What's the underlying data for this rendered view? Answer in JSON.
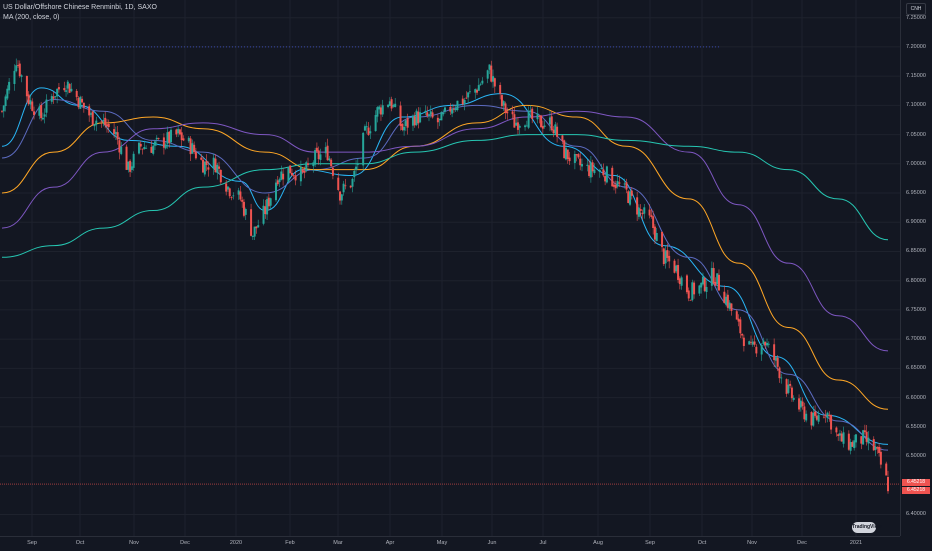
{
  "header": {
    "symbol_line": "US Dollar/Offshore Chinese Renminbi, 1D, SAXO",
    "indicator_line": "MA (200, close, 0)",
    "currency": "CNH"
  },
  "price_axis": {
    "labels": [
      "7.25000",
      "7.20000",
      "7.15000",
      "7.10000",
      "7.05000",
      "7.00000",
      "6.95000",
      "6.90000",
      "6.85000",
      "6.80000",
      "6.75000",
      "6.70000",
      "6.65000",
      "6.60000",
      "6.55000",
      "6.50000",
      "6.40000"
    ],
    "current_price_tag": "6.45218",
    "second_tag": "6.45218"
  },
  "time_axis": {
    "labels": [
      "Sep",
      "Oct",
      "Nov",
      "Dec",
      "2020",
      "Feb",
      "Mar",
      "Apr",
      "May",
      "Jun",
      "Jul",
      "Aug",
      "Sep",
      "Oct",
      "Nov",
      "Dec",
      "2021"
    ]
  },
  "watermark": "TradingView",
  "colors": {
    "background": "#131722",
    "up": "#26a69a",
    "down": "#ef5350",
    "ma_fast": "#29b6f6",
    "ma_mid": "#5c6bc0",
    "ma_orange": "#ffa726",
    "ma_purple": "#7e57c2",
    "ma_200": "#26c6b2",
    "price_line": "#ef5350"
  },
  "chart_data": {
    "type": "candlestick",
    "title": "US Dollar/Offshore Chinese Renminbi, 1D, SAXO",
    "ylim": [
      6.37,
      7.27
    ],
    "x_range": [
      "2019-08-26",
      "2021-01-05"
    ],
    "close_path": [
      {
        "date": "2019-08-26",
        "value": 7.09
      },
      {
        "date": "2019-09-03",
        "value": 7.18
      },
      {
        "date": "2019-09-10",
        "value": 7.11
      },
      {
        "date": "2019-09-17",
        "value": 7.08
      },
      {
        "date": "2019-09-24",
        "value": 7.12
      },
      {
        "date": "2019-10-01",
        "value": 7.14
      },
      {
        "date": "2019-10-08",
        "value": 7.11
      },
      {
        "date": "2019-10-15",
        "value": 7.08
      },
      {
        "date": "2019-10-22",
        "value": 7.07
      },
      {
        "date": "2019-10-29",
        "value": 7.05
      },
      {
        "date": "2019-11-05",
        "value": 6.99
      },
      {
        "date": "2019-11-12",
        "value": 7.03
      },
      {
        "date": "2019-11-19",
        "value": 7.03
      },
      {
        "date": "2019-11-26",
        "value": 7.04
      },
      {
        "date": "2019-12-03",
        "value": 7.05
      },
      {
        "date": "2019-12-10",
        "value": 7.03
      },
      {
        "date": "2019-12-17",
        "value": 7.0
      },
      {
        "date": "2019-12-24",
        "value": 7.0
      },
      {
        "date": "2019-12-31",
        "value": 6.96
      },
      {
        "date": "2020-01-07",
        "value": 6.94
      },
      {
        "date": "2020-01-14",
        "value": 6.88
      },
      {
        "date": "2020-01-21",
        "value": 6.92
      },
      {
        "date": "2020-01-28",
        "value": 6.98
      },
      {
        "date": "2020-02-04",
        "value": 6.99
      },
      {
        "date": "2020-02-11",
        "value": 6.98
      },
      {
        "date": "2020-02-18",
        "value": 7.01
      },
      {
        "date": "2020-02-25",
        "value": 7.02
      },
      {
        "date": "2020-03-03",
        "value": 6.95
      },
      {
        "date": "2020-03-10",
        "value": 6.97
      },
      {
        "date": "2020-03-17",
        "value": 7.05
      },
      {
        "date": "2020-03-24",
        "value": 7.09
      },
      {
        "date": "2020-03-31",
        "value": 7.11
      },
      {
        "date": "2020-04-07",
        "value": 7.06
      },
      {
        "date": "2020-04-14",
        "value": 7.08
      },
      {
        "date": "2020-04-21",
        "value": 7.08
      },
      {
        "date": "2020-04-28",
        "value": 7.07
      },
      {
        "date": "2020-05-05",
        "value": 7.1
      },
      {
        "date": "2020-05-12",
        "value": 7.11
      },
      {
        "date": "2020-05-19",
        "value": 7.13
      },
      {
        "date": "2020-05-26",
        "value": 7.16
      },
      {
        "date": "2020-06-02",
        "value": 7.1
      },
      {
        "date": "2020-06-09",
        "value": 7.07
      },
      {
        "date": "2020-06-16",
        "value": 7.08
      },
      {
        "date": "2020-06-23",
        "value": 7.07
      },
      {
        "date": "2020-06-30",
        "value": 7.07
      },
      {
        "date": "2020-07-07",
        "value": 7.02
      },
      {
        "date": "2020-07-14",
        "value": 7.0
      },
      {
        "date": "2020-07-21",
        "value": 6.99
      },
      {
        "date": "2020-07-28",
        "value": 6.99
      },
      {
        "date": "2020-08-04",
        "value": 6.97
      },
      {
        "date": "2020-08-11",
        "value": 6.95
      },
      {
        "date": "2020-08-18",
        "value": 6.92
      },
      {
        "date": "2020-08-25",
        "value": 6.9
      },
      {
        "date": "2020-09-01",
        "value": 6.84
      },
      {
        "date": "2020-09-08",
        "value": 6.82
      },
      {
        "date": "2020-09-15",
        "value": 6.78
      },
      {
        "date": "2020-09-22",
        "value": 6.79
      },
      {
        "date": "2020-09-29",
        "value": 6.81
      },
      {
        "date": "2020-10-06",
        "value": 6.77
      },
      {
        "date": "2020-10-13",
        "value": 6.72
      },
      {
        "date": "2020-10-20",
        "value": 6.68
      },
      {
        "date": "2020-10-27",
        "value": 6.7
      },
      {
        "date": "2020-11-03",
        "value": 6.66
      },
      {
        "date": "2020-11-10",
        "value": 6.61
      },
      {
        "date": "2020-11-17",
        "value": 6.58
      },
      {
        "date": "2020-11-24",
        "value": 6.56
      },
      {
        "date": "2020-12-01",
        "value": 6.58
      },
      {
        "date": "2020-12-08",
        "value": 6.53
      },
      {
        "date": "2020-12-15",
        "value": 6.52
      },
      {
        "date": "2020-12-22",
        "value": 6.53
      },
      {
        "date": "2020-12-29",
        "value": 6.51
      },
      {
        "date": "2021-01-05",
        "value": 6.45
      }
    ],
    "moving_averages": [
      {
        "id": "ma_fast",
        "color": "#29b6f6",
        "values": [
          {
            "date": "2019-08-26",
            "value": 7.03
          },
          {
            "date": "2019-09-17",
            "value": 7.13
          },
          {
            "date": "2019-10-08",
            "value": 7.1
          },
          {
            "date": "2019-11-05",
            "value": 7.04
          },
          {
            "date": "2019-12-03",
            "value": 7.03
          },
          {
            "date": "2020-01-07",
            "value": 6.97
          },
          {
            "date": "2020-01-21",
            "value": 6.92
          },
          {
            "date": "2020-02-11",
            "value": 6.99
          },
          {
            "date": "2020-03-10",
            "value": 6.98
          },
          {
            "date": "2020-04-07",
            "value": 7.08
          },
          {
            "date": "2020-05-05",
            "value": 7.1
          },
          {
            "date": "2020-06-02",
            "value": 7.12
          },
          {
            "date": "2020-07-07",
            "value": 7.03
          },
          {
            "date": "2020-08-04",
            "value": 6.98
          },
          {
            "date": "2020-09-01",
            "value": 6.86
          },
          {
            "date": "2020-10-06",
            "value": 6.79
          },
          {
            "date": "2020-11-03",
            "value": 6.67
          },
          {
            "date": "2020-12-01",
            "value": 6.57
          },
          {
            "date": "2021-01-05",
            "value": 6.52
          }
        ]
      },
      {
        "id": "ma_mid",
        "color": "#5c6bc0",
        "values": [
          {
            "date": "2019-08-26",
            "value": 7.01
          },
          {
            "date": "2019-09-24",
            "value": 7.11
          },
          {
            "date": "2019-10-22",
            "value": 7.09
          },
          {
            "date": "2019-11-19",
            "value": 7.04
          },
          {
            "date": "2019-12-17",
            "value": 7.02
          },
          {
            "date": "2020-01-21",
            "value": 6.95
          },
          {
            "date": "2020-02-18",
            "value": 6.99
          },
          {
            "date": "2020-03-17",
            "value": 7.01
          },
          {
            "date": "2020-04-14",
            "value": 7.08
          },
          {
            "date": "2020-05-19",
            "value": 7.1
          },
          {
            "date": "2020-06-16",
            "value": 7.09
          },
          {
            "date": "2020-07-14",
            "value": 7.03
          },
          {
            "date": "2020-08-11",
            "value": 6.96
          },
          {
            "date": "2020-09-15",
            "value": 6.84
          },
          {
            "date": "2020-10-13",
            "value": 6.75
          },
          {
            "date": "2020-11-10",
            "value": 6.64
          },
          {
            "date": "2020-12-08",
            "value": 6.56
          },
          {
            "date": "2021-01-05",
            "value": 6.51
          }
        ]
      },
      {
        "id": "ma_orange",
        "color": "#ffa726",
        "values": [
          {
            "date": "2019-08-26",
            "value": 6.95
          },
          {
            "date": "2019-09-24",
            "value": 7.02
          },
          {
            "date": "2019-10-22",
            "value": 7.07
          },
          {
            "date": "2019-11-19",
            "value": 7.08
          },
          {
            "date": "2019-12-17",
            "value": 7.06
          },
          {
            "date": "2020-01-21",
            "value": 7.02
          },
          {
            "date": "2020-02-18",
            "value": 6.99
          },
          {
            "date": "2020-03-17",
            "value": 6.99
          },
          {
            "date": "2020-04-14",
            "value": 7.03
          },
          {
            "date": "2020-05-19",
            "value": 7.07
          },
          {
            "date": "2020-06-16",
            "value": 7.1
          },
          {
            "date": "2020-07-14",
            "value": 7.08
          },
          {
            "date": "2020-08-11",
            "value": 7.03
          },
          {
            "date": "2020-09-15",
            "value": 6.94
          },
          {
            "date": "2020-10-13",
            "value": 6.83
          },
          {
            "date": "2020-11-10",
            "value": 6.72
          },
          {
            "date": "2020-12-08",
            "value": 6.63
          },
          {
            "date": "2021-01-05",
            "value": 6.58
          }
        ]
      },
      {
        "id": "ma_purple",
        "color": "#7e57c2",
        "values": [
          {
            "date": "2019-08-26",
            "value": 6.89
          },
          {
            "date": "2019-09-24",
            "value": 6.96
          },
          {
            "date": "2019-10-22",
            "value": 7.02
          },
          {
            "date": "2019-11-19",
            "value": 7.06
          },
          {
            "date": "2019-12-17",
            "value": 7.07
          },
          {
            "date": "2020-01-21",
            "value": 7.05
          },
          {
            "date": "2020-02-18",
            "value": 7.02
          },
          {
            "date": "2020-03-17",
            "value": 7.02
          },
          {
            "date": "2020-04-14",
            "value": 7.03
          },
          {
            "date": "2020-05-19",
            "value": 7.06
          },
          {
            "date": "2020-06-16",
            "value": 7.08
          },
          {
            "date": "2020-07-14",
            "value": 7.09
          },
          {
            "date": "2020-08-11",
            "value": 7.08
          },
          {
            "date": "2020-09-15",
            "value": 7.02
          },
          {
            "date": "2020-10-13",
            "value": 6.93
          },
          {
            "date": "2020-11-10",
            "value": 6.83
          },
          {
            "date": "2020-12-08",
            "value": 6.74
          },
          {
            "date": "2021-01-05",
            "value": 6.68
          }
        ]
      },
      {
        "id": "ma_200",
        "color": "#26c6b2",
        "values": [
          {
            "date": "2019-08-26",
            "value": 6.84
          },
          {
            "date": "2019-09-24",
            "value": 6.86
          },
          {
            "date": "2019-10-22",
            "value": 6.89
          },
          {
            "date": "2019-11-19",
            "value": 6.92
          },
          {
            "date": "2019-12-17",
            "value": 6.96
          },
          {
            "date": "2020-01-21",
            "value": 6.99
          },
          {
            "date": "2020-02-18",
            "value": 7.0
          },
          {
            "date": "2020-03-17",
            "value": 7.0
          },
          {
            "date": "2020-04-14",
            "value": 7.02
          },
          {
            "date": "2020-05-19",
            "value": 7.04
          },
          {
            "date": "2020-06-16",
            "value": 7.05
          },
          {
            "date": "2020-07-14",
            "value": 7.05
          },
          {
            "date": "2020-08-11",
            "value": 7.04
          },
          {
            "date": "2020-09-15",
            "value": 7.03
          },
          {
            "date": "2020-10-13",
            "value": 7.02
          },
          {
            "date": "2020-11-10",
            "value": 6.99
          },
          {
            "date": "2020-12-08",
            "value": 6.94
          },
          {
            "date": "2021-01-05",
            "value": 6.87
          }
        ]
      }
    ],
    "price_line": 6.452,
    "dotted_line": 7.2
  }
}
